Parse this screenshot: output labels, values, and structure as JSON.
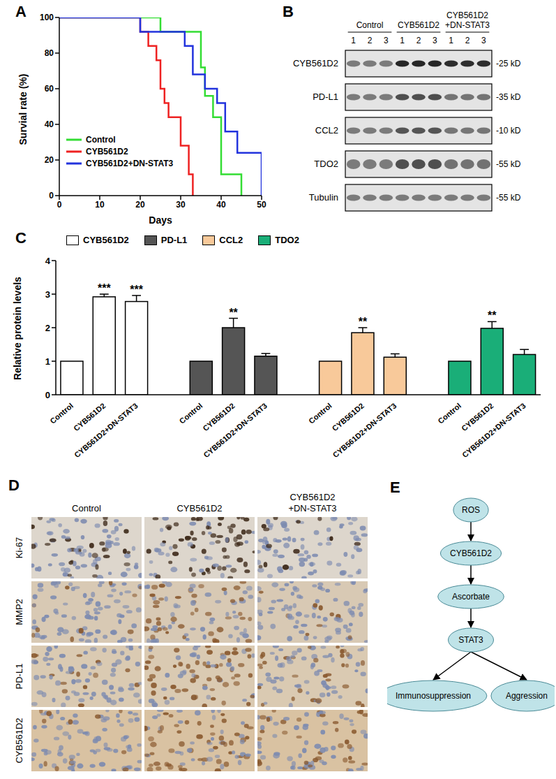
{
  "chart_data": [
    {
      "panel": "A",
      "type": "line",
      "x_label": "Days",
      "y_label": "Survial rate (%)",
      "xlim": [
        0,
        50
      ],
      "xticks": [
        0,
        10,
        20,
        30,
        40,
        50
      ],
      "ylim": [
        0,
        100
      ],
      "yticks": [
        0,
        20,
        40,
        60,
        80,
        100
      ],
      "line_style": "step",
      "legend": "left",
      "series": [
        {
          "name": "Control",
          "color": "#33dd33",
          "x": [
            0,
            25,
            35,
            36,
            38,
            40,
            45
          ],
          "values": [
            100,
            92,
            72,
            56,
            44,
            12,
            0
          ]
        },
        {
          "name": "CYB561D2",
          "color": "#ee2222",
          "x": [
            0,
            20,
            22,
            24,
            25,
            26,
            27,
            30,
            32,
            33
          ],
          "values": [
            100,
            92,
            84,
            76,
            60,
            52,
            44,
            28,
            12,
            0
          ]
        },
        {
          "name": "CYB561D2+DN-STAT3",
          "color": "#2233dd",
          "x": [
            0,
            20,
            31,
            33,
            36,
            39,
            41,
            44,
            50
          ],
          "values": [
            100,
            92,
            84,
            68,
            60,
            52,
            36,
            24,
            0
          ]
        }
      ]
    },
    {
      "panel": "C",
      "type": "bar",
      "y_label": "Relative protein levels",
      "categories": [
        "Control",
        "CYB561D2",
        "CYB561D2+DN-STAT3"
      ],
      "ylim": [
        0,
        4
      ],
      "yticks": [
        0,
        1,
        2,
        3,
        4
      ],
      "legend": "top",
      "series": [
        {
          "name": "CYB561D2",
          "color": "#ffffff",
          "values": [
            1,
            2.92,
            2.78
          ],
          "errors": [
            null,
            0.08,
            0.18
          ],
          "significance": [
            null,
            "***",
            "***"
          ]
        },
        {
          "name": "PD-L1",
          "color": "#555555",
          "values": [
            1,
            2.0,
            1.15
          ],
          "errors": [
            null,
            0.28,
            0.08
          ],
          "significance": [
            null,
            "**",
            null
          ]
        },
        {
          "name": "CCL2",
          "color": "#f8c99a",
          "values": [
            1,
            1.85,
            1.12
          ],
          "errors": [
            null,
            0.15,
            0.1
          ],
          "significance": [
            null,
            "**",
            null
          ]
        },
        {
          "name": "TDO2",
          "color": "#1aae78",
          "values": [
            1,
            1.98,
            1.2
          ],
          "errors": [
            null,
            0.2,
            0.15
          ],
          "significance": [
            null,
            "**",
            null
          ]
        }
      ]
    }
  ],
  "blot": {
    "panel": "B",
    "groups": [
      {
        "label": "Control",
        "lanes": [
          1,
          2,
          3
        ]
      },
      {
        "label": "CYB561D2",
        "lanes": [
          1,
          2,
          3
        ]
      },
      {
        "label": "CYB561D2 +DN-STAT3",
        "lanes": [
          1,
          2,
          3
        ]
      }
    ],
    "rows": [
      {
        "name": "CYB561D2",
        "size": "-25 kD"
      },
      {
        "name": "PD-L1",
        "size": "-35 kD"
      },
      {
        "name": "CCL2",
        "size": "-10 kD"
      },
      {
        "name": "TDO2",
        "size": "-55 kD"
      },
      {
        "name": "Tubulin",
        "size": "-55 kD"
      }
    ]
  },
  "ihc": {
    "panel": "D",
    "columns": [
      "Control",
      "CYB561D2",
      "CYB561D2 +DN-STAT3"
    ],
    "rows": [
      "Ki-67",
      "MMP2",
      "PD-L1",
      "CYB561D2"
    ]
  },
  "diagram": {
    "panel": "E",
    "nodes": [
      "ROS",
      "CYB561D2",
      "Ascorbate",
      "STAT3",
      "Immunosuppression",
      "Aggression"
    ],
    "edges": [
      [
        0,
        1
      ],
      [
        1,
        2
      ],
      [
        2,
        3
      ],
      [
        3,
        4
      ],
      [
        3,
        5
      ]
    ]
  }
}
